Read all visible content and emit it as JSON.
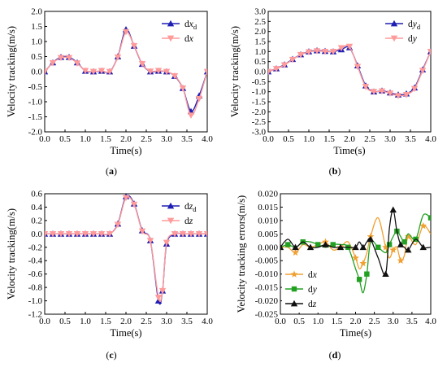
{
  "colors": {
    "ref_blue": "#1f1fb4",
    "actual_pink": "#ff9a9a",
    "err_x": "#f0a030",
    "err_y": "#22a022",
    "err_z": "#111111",
    "axis": "#000000"
  },
  "chart_data": [
    {
      "type": "line",
      "panel": "a",
      "caption": "(a)",
      "xlabel": "Time(s)",
      "ylabel": "Velocity tracking(m/s)",
      "xlim": [
        0,
        4
      ],
      "ylim": [
        -2,
        2
      ],
      "xticks": [
        "0.0",
        "0.5",
        "1.0",
        "1.5",
        "2.0",
        "2.5",
        "3.0",
        "3.5",
        "4.0"
      ],
      "yticks": [
        "-2.0",
        "-1.5",
        "-1.0",
        "-0.5",
        "0.0",
        "0.5",
        "1.0",
        "1.5",
        "2.0"
      ],
      "legend_position": "top-right",
      "legend": [
        {
          "prefix": "dx",
          "sub": "d"
        },
        {
          "prefix": "dx",
          "sub": ""
        }
      ],
      "x": [
        0.0,
        0.2,
        0.4,
        0.6,
        0.8,
        1.0,
        1.2,
        1.4,
        1.6,
        1.8,
        2.0,
        2.2,
        2.4,
        2.6,
        2.8,
        3.0,
        3.2,
        3.4,
        3.6,
        3.8,
        4.0
      ],
      "series": [
        {
          "name": "dx_d",
          "marker": "triangle",
          "values": [
            0.0,
            0.3,
            0.48,
            0.48,
            0.3,
            0.02,
            0.0,
            0.02,
            0.0,
            0.5,
            1.4,
            0.85,
            0.25,
            0.0,
            0.02,
            0.0,
            -0.15,
            -0.55,
            -1.32,
            -0.8,
            0.0
          ]
        },
        {
          "name": "dx",
          "marker": "triangle-down",
          "values": [
            0.0,
            0.29,
            0.46,
            0.46,
            0.28,
            0.03,
            0.0,
            0.03,
            0.0,
            0.48,
            1.32,
            0.86,
            0.26,
            0.01,
            0.03,
            0.0,
            -0.14,
            -0.55,
            -1.45,
            -0.9,
            0.0
          ]
        }
      ]
    },
    {
      "type": "line",
      "panel": "b",
      "caption": "(b)",
      "xlabel": "Time(s)",
      "ylabel": "Velocity tracking(m/s)",
      "xlim": [
        0,
        4
      ],
      "ylim": [
        -3,
        3
      ],
      "xticks": [
        "0.0",
        "0.5",
        "1.0",
        "1.5",
        "2.0",
        "2.5",
        "3.0",
        "3.5",
        "4.0"
      ],
      "yticks": [
        "-3.0",
        "-2.5",
        "-2.0",
        "-1.5",
        "-1.0",
        "-0.5",
        "0.0",
        "0.5",
        "1.0",
        "1.5",
        "2.0",
        "2.5",
        "3.0"
      ],
      "legend_position": "top-right",
      "legend": [
        {
          "prefix": "dy",
          "sub": "d"
        },
        {
          "prefix": "dy",
          "sub": ""
        }
      ],
      "x": [
        0.0,
        0.2,
        0.4,
        0.6,
        0.8,
        1.0,
        1.2,
        1.4,
        1.6,
        1.8,
        2.0,
        2.2,
        2.4,
        2.6,
        2.8,
        3.0,
        3.2,
        3.4,
        3.6,
        3.8,
        4.0
      ],
      "series": [
        {
          "name": "dy_d",
          "marker": "triangle",
          "values": [
            0.0,
            0.15,
            0.35,
            0.62,
            0.85,
            1.0,
            1.05,
            1.02,
            1.0,
            1.1,
            1.2,
            0.3,
            -0.7,
            -1.0,
            -0.95,
            -1.05,
            -1.15,
            -1.1,
            -0.8,
            0.1,
            1.0
          ]
        },
        {
          "name": "dy",
          "marker": "triangle-down",
          "values": [
            0.0,
            0.14,
            0.33,
            0.6,
            0.84,
            0.98,
            1.03,
            1.0,
            1.0,
            1.18,
            1.25,
            0.25,
            -0.75,
            -1.0,
            -0.97,
            -1.08,
            -1.2,
            -1.15,
            -0.85,
            0.05,
            1.0
          ]
        }
      ]
    },
    {
      "type": "line",
      "panel": "c",
      "caption": "(c)",
      "xlabel": "Time(s)",
      "ylabel": "Velocity tracking(m/s)",
      "xlim": [
        0,
        4
      ],
      "ylim": [
        -1.2,
        0.6
      ],
      "xticks": [
        "0.0",
        "0.5",
        "1.0",
        "1.5",
        "2.0",
        "2.5",
        "3.0",
        "3.5",
        "4.0"
      ],
      "yticks": [
        "-1.2",
        "-1.0",
        "-0.8",
        "-0.6",
        "-0.4",
        "-0.2",
        "0.0",
        "0.2",
        "0.4",
        "0.6"
      ],
      "legend_position": "top-right",
      "legend": [
        {
          "prefix": "dz",
          "sub": "d"
        },
        {
          "prefix": "dz",
          "sub": ""
        }
      ],
      "x": [
        0.0,
        0.2,
        0.4,
        0.6,
        0.8,
        1.0,
        1.2,
        1.4,
        1.6,
        1.8,
        2.0,
        2.2,
        2.4,
        2.6,
        2.8,
        2.9,
        3.0,
        3.2,
        3.4,
        3.6,
        3.8,
        4.0
      ],
      "series": [
        {
          "name": "dz_d",
          "marker": "triangle",
          "values": [
            0.0,
            0.0,
            0.0,
            0.0,
            0.0,
            0.0,
            0.0,
            0.0,
            0.0,
            0.15,
            0.56,
            0.45,
            0.05,
            -0.1,
            -1.0,
            -0.85,
            -0.15,
            0.0,
            0.0,
            0.0,
            0.0,
            0.0
          ]
        },
        {
          "name": "dz",
          "marker": "triangle-down",
          "values": [
            0.0,
            0.0,
            0.0,
            0.0,
            0.0,
            0.0,
            0.0,
            0.0,
            0.0,
            0.14,
            0.54,
            0.44,
            0.04,
            -0.1,
            -0.95,
            -0.85,
            -0.13,
            0.0,
            0.0,
            0.0,
            0.0,
            0.0
          ]
        }
      ]
    },
    {
      "type": "line",
      "panel": "d",
      "caption": "(d)",
      "xlabel": "Time(s)",
      "ylabel": "Velocity tracking errors(m/s)",
      "xlim": [
        0,
        4
      ],
      "ylim": [
        -0.025,
        0.02
      ],
      "xticks": [
        "0.0",
        "0.5",
        "1.0",
        "1.5",
        "2.0",
        "2.5",
        "3.0",
        "3.5",
        "4.0"
      ],
      "yticks": [
        "-0.025",
        "-0.020",
        "-0.015",
        "-0.010",
        "-0.005",
        "0.000",
        "0.005",
        "0.010",
        "0.015",
        "0.020"
      ],
      "legend_position": "bottom-left",
      "legend": [
        {
          "prefix": "dx",
          "sub": ""
        },
        {
          "prefix": "dy",
          "sub": ""
        },
        {
          "prefix": "dz",
          "sub": ""
        }
      ],
      "x": [
        0.0,
        0.2,
        0.4,
        0.6,
        0.8,
        1.0,
        1.2,
        1.4,
        1.6,
        1.8,
        2.0,
        2.1,
        2.2,
        2.3,
        2.4,
        2.6,
        2.8,
        2.9,
        3.0,
        3.1,
        3.2,
        3.3,
        3.4,
        3.6,
        3.8,
        4.0
      ],
      "series": [
        {
          "name": "dx",
          "marker": "star",
          "values": [
            0.0,
            0.0,
            -0.002,
            0.001,
            0.0,
            0.001,
            0.002,
            -0.001,
            0.0,
            0.002,
            -0.004,
            -0.008,
            -0.006,
            -0.002,
            0.004,
            0.011,
            0.0,
            -0.004,
            -0.001,
            0.0,
            -0.005,
            -0.003,
            0.004,
            0.001,
            0.008,
            0.005
          ]
        },
        {
          "name": "dy",
          "marker": "square",
          "values": [
            0.0,
            0.001,
            0.0,
            0.002,
            0.002,
            0.001,
            0.0,
            0.001,
            0.001,
            0.0,
            -0.008,
            -0.012,
            -0.017,
            -0.01,
            0.002,
            0.0,
            -0.002,
            0.001,
            0.004,
            0.006,
            0.004,
            0.002,
            0.005,
            0.003,
            0.012,
            0.011
          ]
        },
        {
          "name": "dz",
          "marker": "triangle",
          "values": [
            0.0,
            0.003,
            0.0,
            0.002,
            0.0,
            0.0,
            0.001,
            0.0,
            0.0,
            0.0,
            0.0,
            0.002,
            0.0,
            0.002,
            0.003,
            -0.004,
            -0.01,
            0.007,
            0.014,
            0.006,
            0.001,
            0.0,
            -0.001,
            0.003,
            0.0,
            0.0
          ]
        }
      ]
    }
  ]
}
